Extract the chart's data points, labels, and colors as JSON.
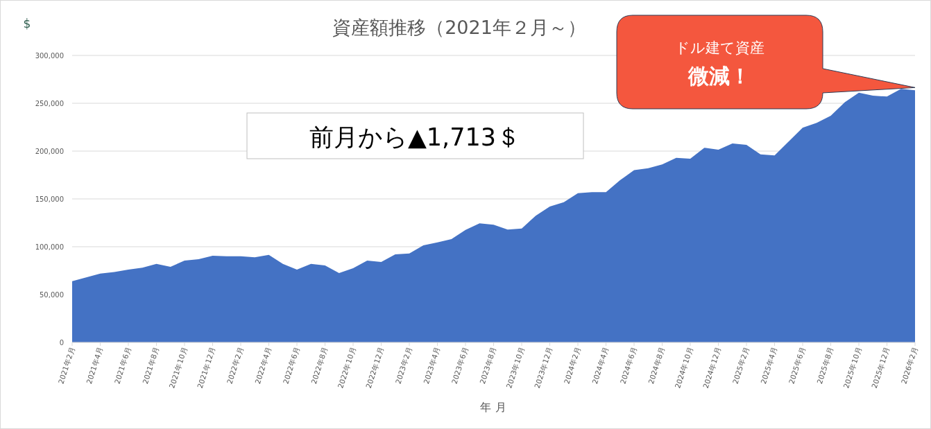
{
  "chart_data": {
    "type": "area",
    "title": "資産額推移（2021年２月～）",
    "xlabel": "年 月",
    "ylabel": "$",
    "categories": [
      "2021年2月",
      null,
      "2021年4月",
      null,
      "2021年6月",
      null,
      "2021年8月",
      null,
      "2021年10月",
      null,
      "2021年12月",
      null,
      "2022年2月",
      null,
      "2022年4月",
      null,
      "2022年6月",
      null,
      "2022年8月",
      null,
      "2022年10月",
      null,
      "2022年12月",
      null,
      "2023年2月",
      null,
      "2023年4月",
      null,
      "2023年6月",
      null,
      "2023年8月",
      null,
      "2023年10月",
      null,
      "2023年12月",
      null,
      "2024年2月",
      null,
      "2024年4月",
      null,
      "2024年6月",
      null,
      "2024年8月",
      null,
      "2024年10月",
      null,
      "2024年12月",
      null,
      "2025年2月",
      null,
      "2025年4月",
      null,
      "2025年6月",
      null,
      "2025年8月",
      null,
      "2025年10月",
      null,
      "2025年12月",
      null,
      "2026年2月"
    ],
    "series": [
      {
        "color": "#4472c4",
        "values": [
          64000,
          68000,
          72000,
          73500,
          76000,
          78000,
          82000,
          79000,
          85500,
          87000,
          90500,
          90000,
          90000,
          89000,
          91500,
          82000,
          76000,
          82000,
          80500,
          72500,
          77500,
          85500,
          84000,
          92000,
          93000,
          101500,
          104500,
          108000,
          117500,
          124500,
          123000,
          118000,
          119000,
          132500,
          142000,
          146500,
          156000,
          157000,
          157000,
          169500,
          180000,
          182000,
          186000,
          193000,
          192000,
          203500,
          201500,
          208000,
          206500,
          196500,
          195500,
          210000,
          224500,
          229500,
          237000,
          251000,
          261000,
          258000,
          257000,
          265000,
          263500
        ]
      }
    ],
    "ylim": [
      0,
      300000
    ],
    "yticks": [
      0,
      {
        "value": 50000,
        "label": "50,000"
      },
      {
        "value": 100000,
        "label": "100,000"
      },
      {
        "value": 150000,
        "label": "150,000"
      },
      {
        "value": 200000,
        "label": "200,000"
      },
      {
        "value": 250000,
        "label": "250,000"
      },
      {
        "value": 300000,
        "label": "300,000"
      }
    ],
    "grid": "y",
    "annotations": [
      "前月から▲1,713＄",
      "ドル建て資産",
      "微減！"
    ]
  }
}
